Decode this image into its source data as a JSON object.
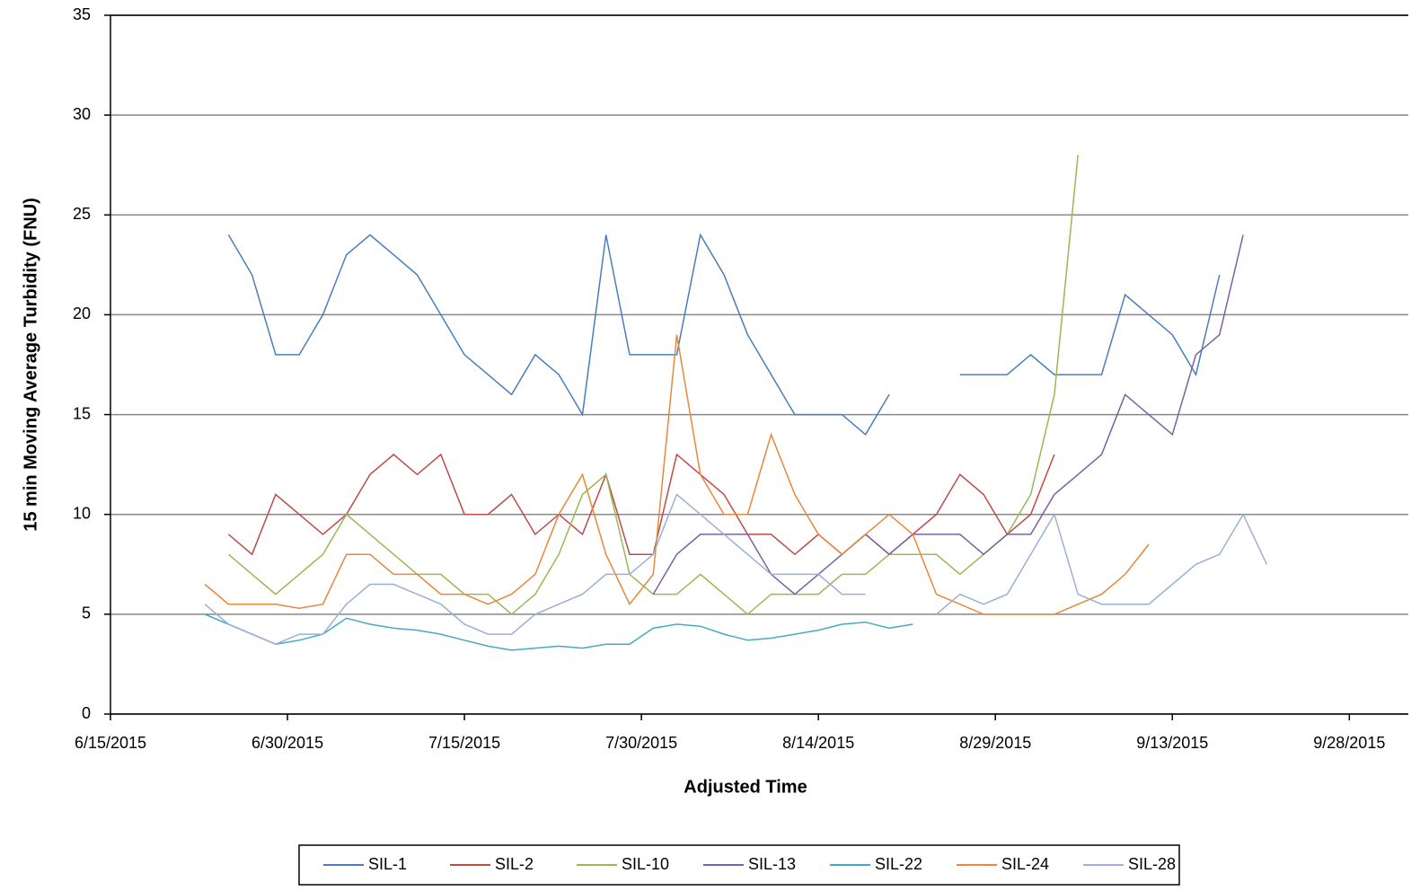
{
  "chart_data": {
    "type": "line",
    "x_label": "Adjusted Time",
    "y_label": "15 min  Moving  Average Turbidity (FNU)",
    "x": [
      "2015-06-23",
      "2015-06-25",
      "2015-06-27",
      "2015-06-29",
      "2015-07-01",
      "2015-07-03",
      "2015-07-05",
      "2015-07-07",
      "2015-07-09",
      "2015-07-11",
      "2015-07-13",
      "2015-07-15",
      "2015-07-17",
      "2015-07-19",
      "2015-07-21",
      "2015-07-23",
      "2015-07-25",
      "2015-07-27",
      "2015-07-29",
      "2015-07-31",
      "2015-08-02",
      "2015-08-04",
      "2015-08-06",
      "2015-08-08",
      "2015-08-10",
      "2015-08-12",
      "2015-08-14",
      "2015-08-16",
      "2015-08-18",
      "2015-08-20",
      "2015-08-22",
      "2015-08-24",
      "2015-08-26",
      "2015-08-28",
      "2015-08-30",
      "2015-09-01",
      "2015-09-03",
      "2015-09-05",
      "2015-09-07",
      "2015-09-09",
      "2015-09-11",
      "2015-09-13",
      "2015-09-15",
      "2015-09-17",
      "2015-09-19",
      "2015-09-21"
    ],
    "series": [
      {
        "name": "SIL-1",
        "color": "#4a7ebb",
        "values": [
          null,
          24,
          22,
          18,
          18,
          20,
          23,
          24,
          23,
          22,
          20,
          18,
          17,
          16,
          18,
          17,
          15,
          24,
          18,
          18,
          18,
          24,
          22,
          19,
          17,
          15,
          15,
          15,
          14,
          16,
          null,
          null,
          17,
          17,
          17,
          18,
          17,
          17,
          17,
          21,
          20,
          19,
          17,
          22,
          null,
          null
        ]
      },
      {
        "name": "SIL-2",
        "color": "#be4b48",
        "values": [
          null,
          9,
          8,
          11,
          10,
          9,
          10,
          12,
          13,
          12,
          13,
          10,
          10,
          11,
          9,
          10,
          9,
          12,
          8,
          8,
          13,
          12,
          11,
          9,
          9,
          8,
          9,
          8,
          9,
          8,
          9,
          10,
          12,
          11,
          9,
          10,
          13,
          null,
          null,
          null,
          null,
          null,
          null,
          null,
          null,
          null
        ]
      },
      {
        "name": "SIL-10",
        "color": "#98b954",
        "values": [
          null,
          8,
          7,
          6,
          7,
          8,
          10,
          9,
          8,
          7,
          7,
          6,
          6,
          5,
          6,
          8,
          11,
          12,
          7,
          6,
          6,
          7,
          6,
          5,
          6,
          6,
          6,
          7,
          7,
          8,
          8,
          8,
          7,
          8,
          9,
          11,
          16,
          28,
          null,
          null,
          null,
          null,
          null,
          null,
          null,
          null
        ]
      },
      {
        "name": "SIL-13",
        "color": "#7d60a0",
        "values": [
          null,
          null,
          null,
          null,
          null,
          null,
          null,
          null,
          null,
          null,
          null,
          null,
          null,
          null,
          null,
          null,
          null,
          null,
          null,
          6,
          8,
          9,
          9,
          9,
          7,
          6,
          7,
          8,
          9,
          8,
          9,
          9,
          9,
          8,
          9,
          9,
          11,
          12,
          13,
          16,
          15,
          14,
          18,
          19,
          24,
          null
        ]
      },
      {
        "name": "SIL-22",
        "color": "#46aac5",
        "values": [
          5,
          4.5,
          4,
          3.5,
          3.7,
          4,
          4.8,
          4.5,
          4.3,
          4.2,
          4,
          3.7,
          3.4,
          3.2,
          3.3,
          3.4,
          3.3,
          3.5,
          3.5,
          4.3,
          4.5,
          4.4,
          4,
          3.7,
          3.8,
          4,
          4.2,
          4.5,
          4.6,
          4.3,
          4.5,
          null,
          null,
          null,
          null,
          null,
          null,
          null,
          null,
          null,
          null,
          null,
          null,
          null,
          null,
          null
        ]
      },
      {
        "name": "SIL-24",
        "color": "#e8883a",
        "values": [
          6.5,
          5.5,
          5.5,
          5.5,
          5.3,
          5.5,
          8,
          8,
          7,
          7,
          6,
          6,
          5.5,
          6,
          7,
          10,
          12,
          8,
          5.5,
          7,
          19,
          12,
          10,
          10,
          14,
          11,
          9,
          8,
          9,
          10,
          9,
          6,
          5.5,
          5,
          5,
          5,
          5,
          5.5,
          6,
          7,
          8.5,
          null,
          null,
          null,
          null,
          null
        ]
      },
      {
        "name": "SIL-28",
        "color": "#9bafd8",
        "values": [
          5.5,
          4.5,
          4,
          3.5,
          4,
          4,
          5.5,
          6.5,
          6.5,
          6,
          5.5,
          4.5,
          4,
          4,
          5,
          5.5,
          6,
          7,
          7,
          8,
          11,
          10,
          9,
          8,
          7,
          7,
          7,
          6,
          6,
          null,
          null,
          5,
          6,
          5.5,
          6,
          8,
          10,
          6,
          5.5,
          5.5,
          5.5,
          6.5,
          7.5,
          8,
          10,
          7.5
        ]
      }
    ],
    "xlim": [
      "2015-06-15",
      "2015-10-03"
    ],
    "xticks": [
      {
        "value": "2015-06-15",
        "label": "6/15/2015"
      },
      {
        "value": "2015-06-30",
        "label": "6/30/2015"
      },
      {
        "value": "2015-07-15",
        "label": "7/15/2015"
      },
      {
        "value": "2015-07-30",
        "label": "7/30/2015"
      },
      {
        "value": "2015-08-14",
        "label": "8/14/2015"
      },
      {
        "value": "2015-08-29",
        "label": "8/29/2015"
      },
      {
        "value": "2015-09-13",
        "label": "9/13/2015"
      },
      {
        "value": "2015-09-28",
        "label": "9/28/2015"
      }
    ],
    "ylim": [
      0,
      35
    ],
    "yticks": [
      0,
      5,
      10,
      15,
      20,
      25,
      30,
      35
    ],
    "grid": true,
    "legend": "bottom"
  }
}
